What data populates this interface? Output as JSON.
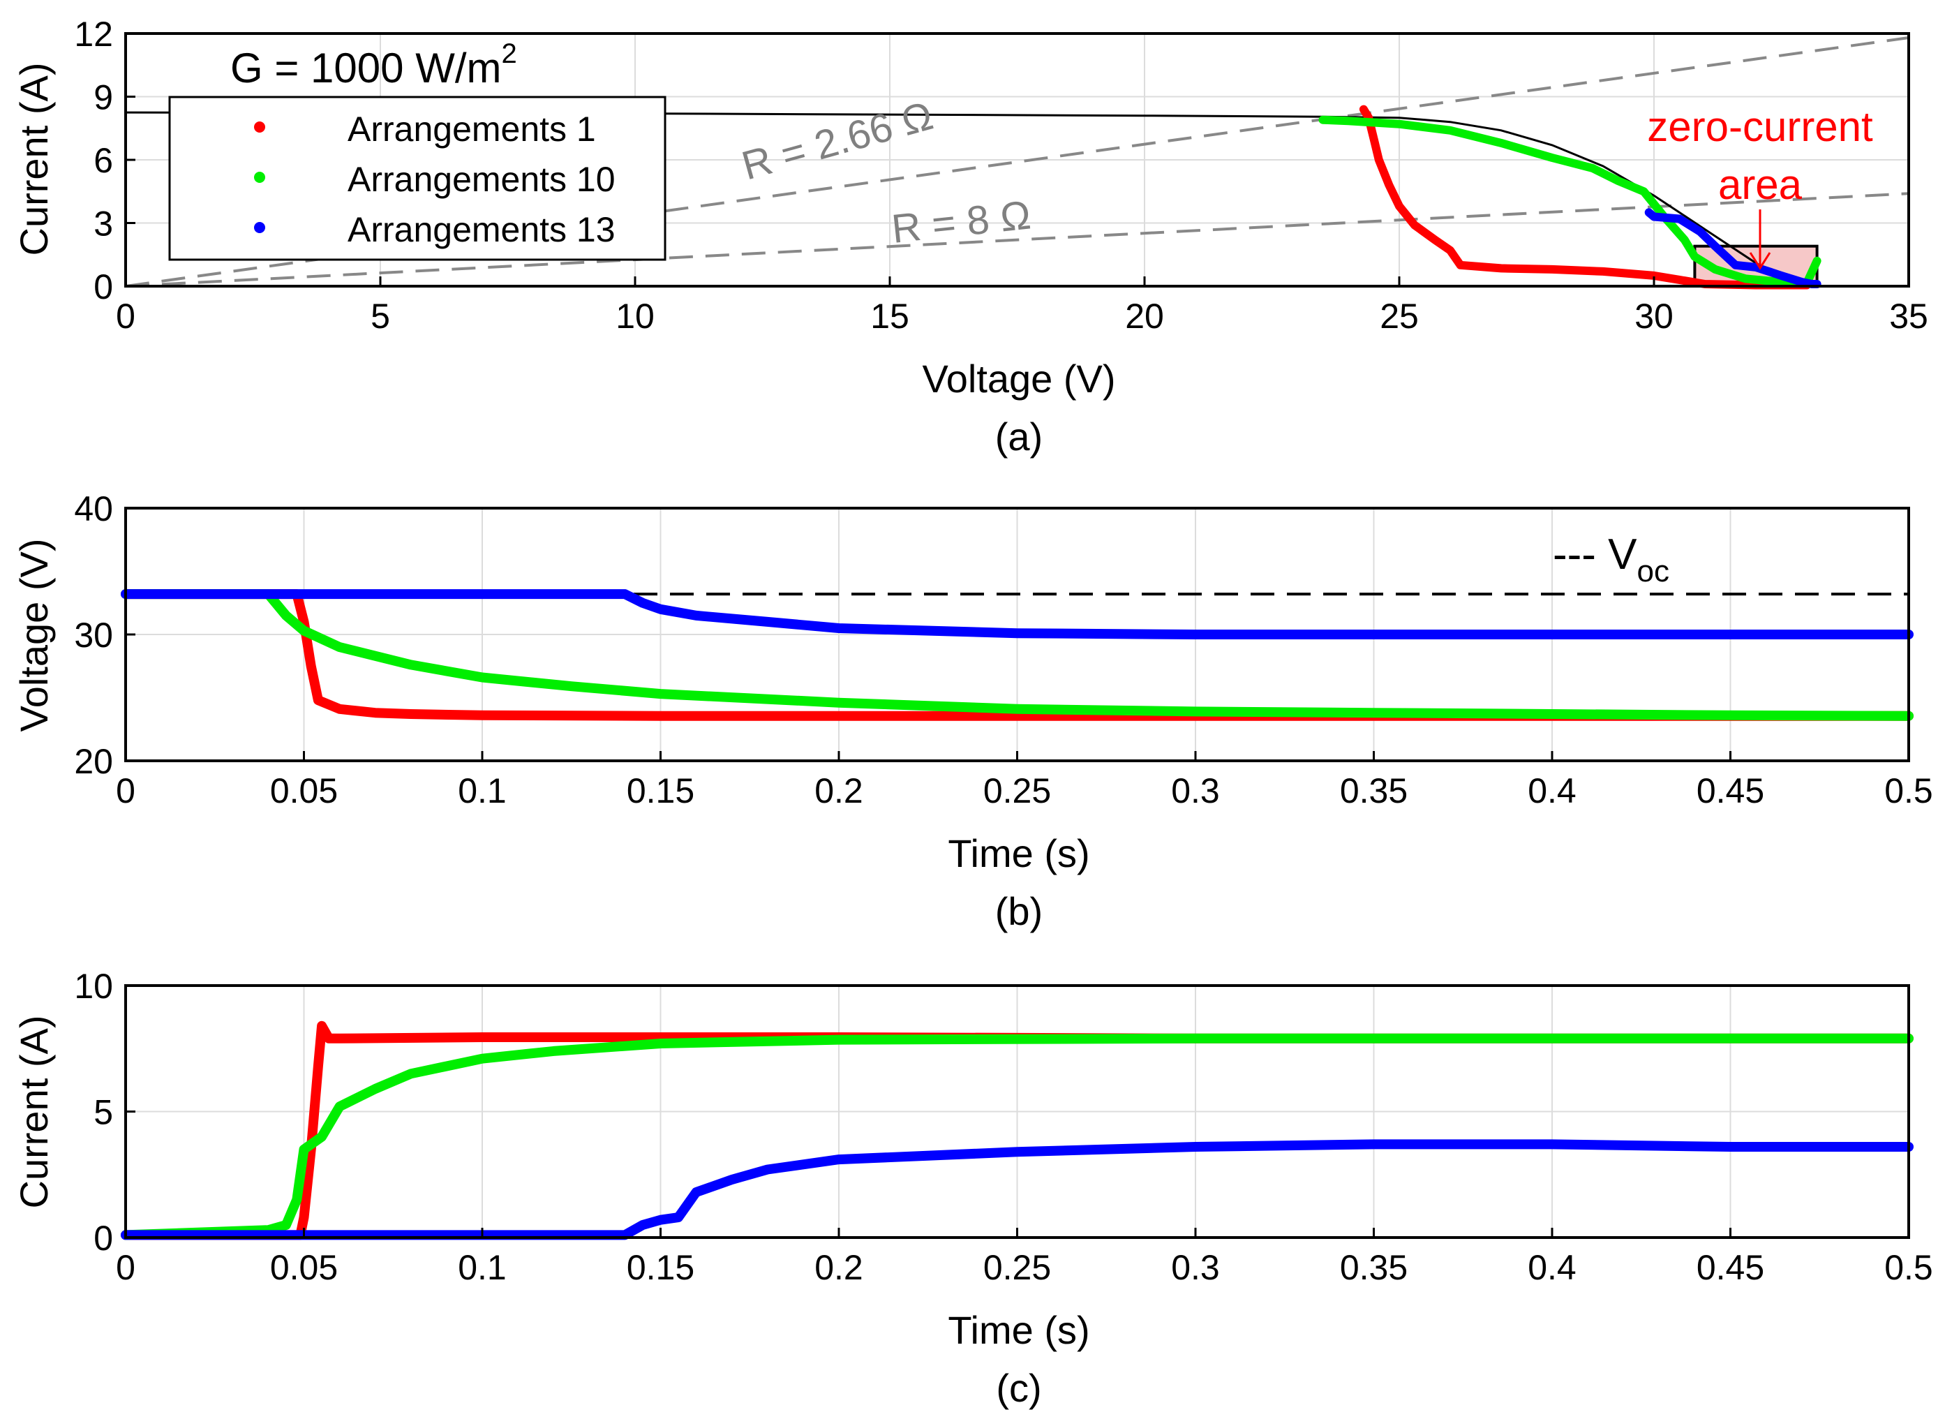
{
  "chart_data": [
    {
      "type": "scatter",
      "panel_caption": "(a)",
      "xlabel": "Voltage (V)",
      "ylabel": "Current (A)",
      "xlim": [
        0,
        35
      ],
      "ylim": [
        0,
        12
      ],
      "xticks": [
        "0",
        "5",
        "10",
        "15",
        "20",
        "25",
        "30",
        "35"
      ],
      "yticks": [
        "0",
        "3",
        "6",
        "9",
        "12"
      ],
      "grid": true,
      "legend_position": "top-left",
      "legend_title": "G = 1000 W/m",
      "legend_title_superscript": "2",
      "colors": {
        "red": "#ff0000",
        "green": "#00ee00",
        "blue": "#0000ff",
        "pv_curve": "#000000",
        "load_lines": "#888888",
        "zone_fill": "#f6c8c8"
      },
      "annotations": {
        "r1_label": "R = 2.66 Ω",
        "r2_label": "R = 8 Ω",
        "zone_label_line1": "zero-current",
        "zone_label_line2": "area"
      },
      "pv_curve": {
        "x": [
          0,
          10,
          20,
          23.5,
          25,
          26,
          27,
          28,
          29,
          30,
          30.5,
          31,
          31.5,
          32,
          32.5,
          33.2
        ],
        "y": [
          8.25,
          8.2,
          8.1,
          8.05,
          8.0,
          7.8,
          7.4,
          6.7,
          5.7,
          4.3,
          3.5,
          2.7,
          1.9,
          1.1,
          0.4,
          0
        ]
      },
      "load_lines": [
        {
          "label": "R = 2.66 Ω",
          "x": [
            0,
            35
          ],
          "y": [
            0,
            11.8
          ]
        },
        {
          "label": "R = 8 Ω",
          "x": [
            0,
            35
          ],
          "y": [
            0,
            4.4
          ]
        }
      ],
      "zone": {
        "x": [
          30.8,
          33.2
        ],
        "y": [
          0,
          1.9
        ]
      },
      "series": [
        {
          "name": "Arrangements 1",
          "color": "#ff0000",
          "x": [
            24.3,
            24.4,
            24.45,
            24.5,
            24.6,
            24.8,
            25.0,
            25.3,
            25.7,
            26.0,
            26.2,
            27.0,
            28.0,
            29.0,
            30.0,
            30.5,
            31.0,
            32.0,
            33.0
          ],
          "y": [
            8.4,
            8.0,
            7.5,
            7.0,
            6.0,
            4.8,
            3.8,
            2.9,
            2.2,
            1.7,
            1.0,
            0.85,
            0.8,
            0.7,
            0.5,
            0.3,
            0.1,
            0.05,
            0.05
          ]
        },
        {
          "name": "Arrangements 10",
          "color": "#00ee00",
          "x": [
            23.5,
            24.0,
            25.0,
            26.0,
            27.0,
            28.0,
            28.8,
            29.3,
            29.8,
            30.2,
            30.6,
            30.8,
            31.2,
            31.8,
            32.5,
            33.0,
            33.2
          ],
          "y": [
            7.9,
            7.85,
            7.7,
            7.4,
            6.8,
            6.1,
            5.6,
            5.0,
            4.5,
            3.3,
            2.2,
            1.4,
            0.8,
            0.35,
            0.2,
            0.15,
            1.2
          ]
        },
        {
          "name": "Arrangements 13",
          "color": "#0000ff",
          "x": [
            29.9,
            30.0,
            30.5,
            30.9,
            31.2,
            31.6,
            32.0,
            32.5,
            32.9,
            33.1,
            33.2
          ],
          "y": [
            3.5,
            3.3,
            3.2,
            2.6,
            1.9,
            1.0,
            0.9,
            0.5,
            0.2,
            0.1,
            0.1
          ]
        }
      ]
    },
    {
      "type": "line",
      "panel_caption": "(b)",
      "xlabel": "Time (s)",
      "ylabel": "Voltage (V)",
      "xlim": [
        0,
        0.5
      ],
      "ylim": [
        20,
        40
      ],
      "xticks": [
        "0",
        "0.05",
        "0.1",
        "0.15",
        "0.2",
        "0.25",
        "0.3",
        "0.35",
        "0.4",
        "0.45",
        "0.5"
      ],
      "yticks": [
        "20",
        "30",
        "40"
      ],
      "grid": true,
      "legend_position": "top-right",
      "reference_line": {
        "label": "--- V",
        "label_subscript": "oc",
        "y": 33.2
      },
      "series": [
        {
          "color": "#ff0000",
          "x": [
            0,
            0.048,
            0.05,
            0.052,
            0.054,
            0.06,
            0.07,
            0.08,
            0.1,
            0.15,
            0.2,
            0.3,
            0.4,
            0.5
          ],
          "y": [
            33.2,
            33.2,
            31.0,
            27.5,
            24.8,
            24.1,
            23.8,
            23.7,
            23.6,
            23.55,
            23.55,
            23.55,
            23.55,
            23.55
          ]
        },
        {
          "color": "#00ee00",
          "x": [
            0,
            0.04,
            0.045,
            0.05,
            0.06,
            0.08,
            0.1,
            0.125,
            0.15,
            0.2,
            0.25,
            0.3,
            0.35,
            0.4,
            0.45,
            0.5
          ],
          "y": [
            33.2,
            33.2,
            31.5,
            30.3,
            29.0,
            27.6,
            26.6,
            25.9,
            25.3,
            24.6,
            24.1,
            23.9,
            23.8,
            23.7,
            23.6,
            23.55
          ]
        },
        {
          "color": "#0000ff",
          "x": [
            0,
            0.14,
            0.145,
            0.15,
            0.16,
            0.18,
            0.2,
            0.25,
            0.3,
            0.4,
            0.5
          ],
          "y": [
            33.2,
            33.2,
            32.5,
            32.0,
            31.5,
            31.0,
            30.5,
            30.1,
            30.0,
            30.0,
            30.0
          ]
        }
      ]
    },
    {
      "type": "line",
      "panel_caption": "(c)",
      "xlabel": "Time (s)",
      "ylabel": "Current (A)",
      "xlim": [
        0,
        0.5
      ],
      "ylim": [
        0,
        10
      ],
      "xticks": [
        "0",
        "0.05",
        "0.1",
        "0.15",
        "0.2",
        "0.25",
        "0.3",
        "0.35",
        "0.4",
        "0.45",
        "0.5"
      ],
      "yticks": [
        "0",
        "5",
        "10"
      ],
      "grid": true,
      "series": [
        {
          "color": "#ff0000",
          "x": [
            0,
            0.049,
            0.05,
            0.052,
            0.054,
            0.055,
            0.057,
            0.06,
            0.1,
            0.2,
            0.3,
            0.4,
            0.5
          ],
          "y": [
            0.1,
            0.1,
            0.8,
            3.5,
            6.8,
            8.4,
            7.9,
            7.9,
            7.95,
            7.95,
            7.9,
            7.9,
            7.9
          ]
        },
        {
          "color": "#00ee00",
          "x": [
            0,
            0.04,
            0.045,
            0.048,
            0.05,
            0.055,
            0.06,
            0.07,
            0.08,
            0.1,
            0.12,
            0.15,
            0.2,
            0.3,
            0.4,
            0.5
          ],
          "y": [
            0.1,
            0.3,
            0.5,
            1.5,
            3.5,
            4.0,
            5.2,
            5.9,
            6.5,
            7.1,
            7.4,
            7.7,
            7.85,
            7.9,
            7.9,
            7.9
          ]
        },
        {
          "color": "#0000ff",
          "x": [
            0,
            0.14,
            0.145,
            0.15,
            0.155,
            0.16,
            0.17,
            0.18,
            0.2,
            0.25,
            0.3,
            0.35,
            0.4,
            0.45,
            0.5
          ],
          "y": [
            0.1,
            0.1,
            0.5,
            0.7,
            0.8,
            1.8,
            2.3,
            2.7,
            3.1,
            3.4,
            3.6,
            3.7,
            3.7,
            3.6,
            3.6
          ]
        }
      ]
    }
  ]
}
